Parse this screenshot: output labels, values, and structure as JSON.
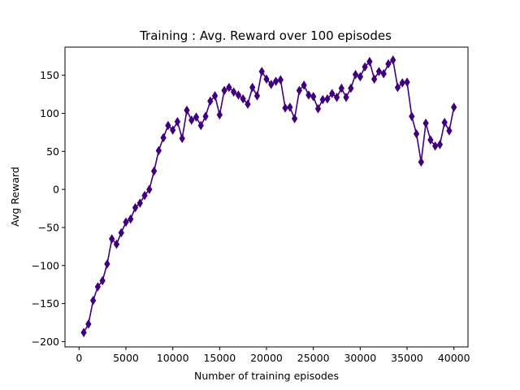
{
  "chart_data": {
    "type": "line",
    "title": "Training : Avg. Reward over 100 episodes",
    "xlabel": "Number of training episodes",
    "ylabel": "Avg Reward",
    "xlim": [
      -1500,
      41500
    ],
    "ylim": [
      -207,
      187
    ],
    "xticks": [
      0,
      5000,
      10000,
      15000,
      20000,
      25000,
      30000,
      35000,
      40000
    ],
    "yticks": [
      -200,
      -150,
      -100,
      -50,
      0,
      50,
      100,
      150
    ],
    "grid": false,
    "legend": "none",
    "marker": "thin-diamond",
    "line_color": "#3f007d",
    "marker_color": "#3f007d",
    "series": [
      {
        "x": [
          500,
          1000,
          1500,
          2000,
          2500,
          3000,
          3500,
          4000,
          4500,
          5000,
          5500,
          6000,
          6500,
          7000,
          7500,
          8000,
          8500,
          9000,
          9500,
          10000,
          10500,
          11000,
          11500,
          12000,
          12500,
          13000,
          13500,
          14000,
          14500,
          15000,
          15500,
          16000,
          16500,
          17000,
          17500,
          18000,
          18500,
          19000,
          19500,
          20000,
          20500,
          21000,
          21500,
          22000,
          22500,
          23000,
          23500,
          24000,
          24500,
          25000,
          25500,
          26000,
          26500,
          27000,
          27500,
          28000,
          28500,
          29000,
          29500,
          30000,
          30500,
          31000,
          31500,
          32000,
          32500,
          33000,
          33500,
          34000,
          34500,
          35000,
          35500,
          36000,
          36500,
          37000,
          37500,
          38000,
          38500,
          39000,
          39500,
          40000
        ],
        "values": [
          -188,
          -177,
          -146,
          -128,
          -120,
          -98,
          -65,
          -72,
          -57,
          -43,
          -39,
          -24,
          -18,
          -8,
          0,
          24,
          51,
          68,
          84,
          78,
          89,
          67,
          104,
          91,
          95,
          84,
          96,
          116,
          123,
          98,
          130,
          134,
          128,
          124,
          119,
          112,
          134,
          123,
          155,
          145,
          138,
          142,
          144,
          107,
          108,
          93,
          130,
          137,
          124,
          122,
          106,
          118,
          119,
          126,
          121,
          133,
          121,
          133,
          151,
          148,
          161,
          168,
          145,
          155,
          152,
          165,
          170,
          134,
          140,
          141,
          96,
          73,
          36,
          87,
          65,
          57,
          59,
          88,
          77,
          108
        ]
      }
    ]
  }
}
